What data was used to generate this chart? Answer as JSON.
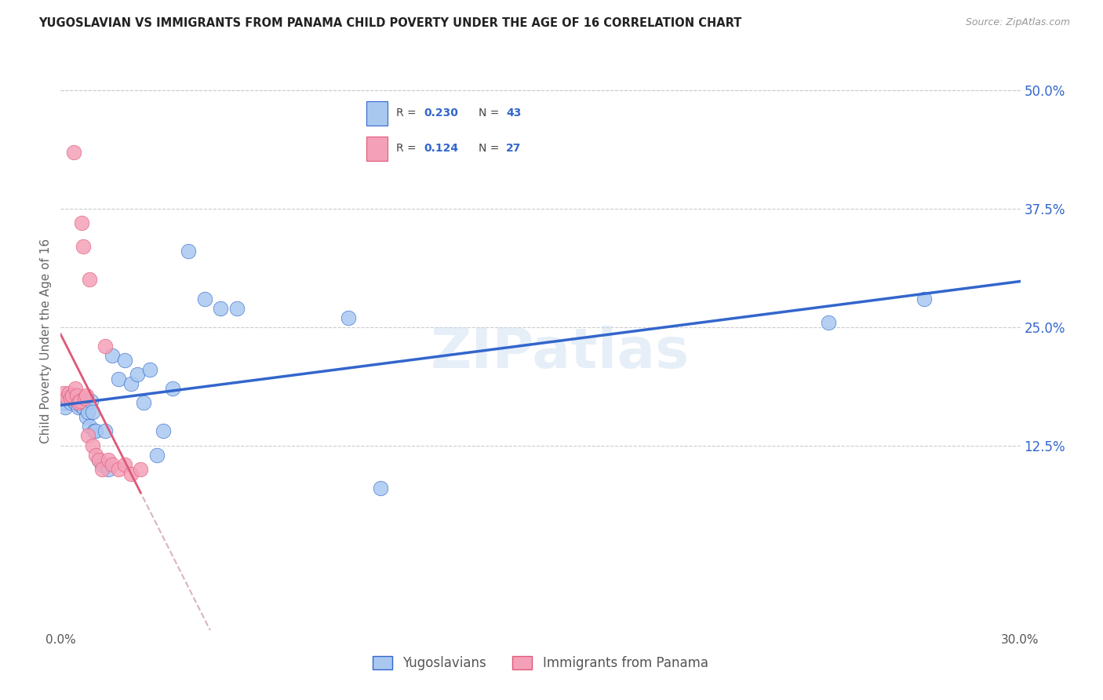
{
  "title": "YUGOSLAVIAN VS IMMIGRANTS FROM PANAMA CHILD POVERTY UNDER THE AGE OF 16 CORRELATION CHART",
  "source": "Source: ZipAtlas.com",
  "ylabel_label": "Child Poverty Under the Age of 16",
  "xlegend": [
    "Yugoslavians",
    "Immigrants from Panama"
  ],
  "legend_r": [
    0.23,
    0.124
  ],
  "legend_n": [
    43,
    27
  ],
  "ytick_labels": [
    "12.5%",
    "25.0%",
    "37.5%",
    "50.0%"
  ],
  "ytick_values": [
    12.5,
    25.0,
    37.5,
    50.0
  ],
  "xlim": [
    0.0,
    30.0
  ],
  "ylim": [
    -7.0,
    54.0
  ],
  "color_blue": "#A8C8F0",
  "color_pink": "#F4A0B8",
  "line_blue": "#3366CC",
  "line_pink": "#E05878",
  "line_dash_color": "#D0A0B8",
  "background": "#FFFFFF",
  "watermark": "ZIPatlas",
  "blue_x": [
    0.1,
    0.15,
    0.2,
    0.25,
    0.3,
    0.35,
    0.4,
    0.45,
    0.5,
    0.55,
    0.6,
    0.65,
    0.7,
    0.75,
    0.8,
    0.85,
    0.9,
    0.95,
    1.0,
    1.05,
    1.1,
    1.2,
    1.3,
    1.4,
    1.5,
    1.6,
    1.8,
    2.0,
    2.2,
    2.4,
    2.6,
    2.8,
    3.0,
    3.2,
    3.5,
    4.0,
    4.5,
    5.0,
    5.5,
    9.0,
    10.0,
    24.0,
    27.0
  ],
  "blue_y": [
    17.0,
    16.5,
    17.5,
    17.8,
    17.0,
    17.5,
    17.2,
    17.0,
    17.5,
    16.5,
    16.8,
    17.2,
    16.5,
    17.0,
    15.5,
    16.0,
    14.5,
    17.2,
    16.0,
    14.0,
    14.0,
    11.0,
    10.5,
    14.0,
    10.0,
    22.0,
    19.5,
    21.5,
    19.0,
    20.0,
    17.0,
    20.5,
    11.5,
    14.0,
    18.5,
    33.0,
    28.0,
    27.0,
    27.0,
    26.0,
    8.0,
    25.5,
    28.0
  ],
  "pink_x": [
    0.1,
    0.2,
    0.25,
    0.3,
    0.35,
    0.4,
    0.45,
    0.5,
    0.55,
    0.6,
    0.65,
    0.7,
    0.75,
    0.8,
    0.85,
    0.9,
    1.0,
    1.1,
    1.2,
    1.3,
    1.4,
    1.5,
    1.6,
    1.8,
    2.0,
    2.2,
    2.5
  ],
  "pink_y": [
    18.0,
    17.5,
    18.0,
    17.5,
    17.8,
    43.5,
    18.5,
    17.8,
    17.0,
    17.2,
    36.0,
    33.5,
    17.5,
    17.8,
    13.5,
    30.0,
    12.5,
    11.5,
    11.0,
    10.0,
    23.0,
    11.0,
    10.5,
    10.0,
    10.5,
    9.5,
    10.0
  ]
}
